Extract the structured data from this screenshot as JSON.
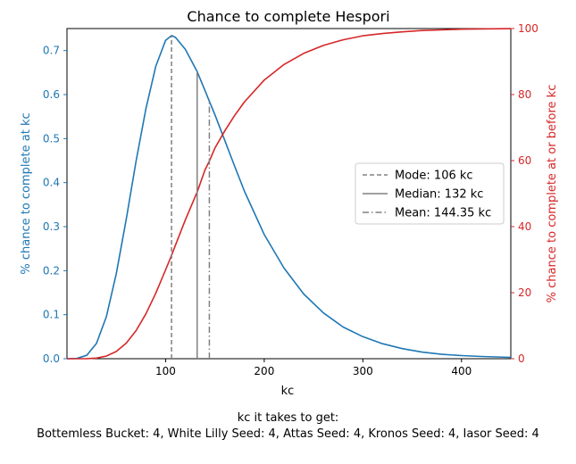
{
  "chart_data": {
    "type": "line",
    "title": "Chance to complete Hespori",
    "xlabel": "kc",
    "ylabel_left": "% chance to complete at kc",
    "ylabel_right": "% chance to complete at or before kc",
    "xlim": [
      0,
      450
    ],
    "ylim_left": [
      0,
      0.75
    ],
    "ylim_right": [
      0,
      100
    ],
    "x_ticks": [
      100,
      200,
      300,
      400
    ],
    "y_ticks_left": [
      0.0,
      0.1,
      0.2,
      0.3,
      0.4,
      0.5,
      0.6,
      0.7
    ],
    "y_ticks_right": [
      0,
      20,
      40,
      60,
      80,
      100
    ],
    "grid": false,
    "legend_position": "center-right",
    "colors": {
      "left_axis": "#1f77b4",
      "right_axis": "#d62728",
      "markers": "#808080"
    },
    "series": [
      {
        "axis": "left",
        "color": "#1f77b4",
        "x": [
          0,
          10,
          20,
          30,
          40,
          50,
          60,
          70,
          80,
          90,
          100,
          106,
          110,
          120,
          132,
          140,
          144,
          150,
          160,
          170,
          180,
          200,
          220,
          240,
          260,
          280,
          300,
          320,
          340,
          360,
          380,
          400,
          420,
          450
        ],
        "y": [
          0.0,
          0.0006,
          0.0077,
          0.035,
          0.096,
          0.193,
          0.316,
          0.448,
          0.568,
          0.664,
          0.723,
          0.734,
          0.73,
          0.703,
          0.652,
          0.609,
          0.587,
          0.554,
          0.496,
          0.437,
          0.38,
          0.282,
          0.206,
          0.147,
          0.104,
          0.072,
          0.05,
          0.034,
          0.023,
          0.015,
          0.01,
          0.007,
          0.005,
          0.003
        ]
      },
      {
        "axis": "right",
        "color": "#d62728",
        "x": [
          0,
          10,
          20,
          30,
          40,
          50,
          60,
          70,
          80,
          90,
          100,
          106,
          110,
          120,
          132,
          140,
          144,
          150,
          160,
          170,
          180,
          200,
          220,
          240,
          260,
          280,
          300,
          320,
          340,
          360,
          380,
          400,
          420,
          450
        ],
        "y": [
          0.0,
          0.0,
          0.02,
          0.18,
          0.8,
          2.2,
          4.7,
          8.5,
          13.6,
          19.8,
          26.9,
          31.3,
          34.4,
          42.0,
          50.5,
          57.2,
          59.6,
          63.8,
          69.0,
          73.7,
          77.8,
          84.4,
          89.1,
          92.5,
          94.9,
          96.6,
          97.8,
          98.5,
          99.0,
          99.4,
          99.6,
          99.8,
          99.9,
          99.96
        ]
      }
    ],
    "markers": [
      {
        "label": "Mode: 106 kc",
        "x": 106,
        "style": "dashed"
      },
      {
        "label": "Median: 132 kc",
        "x": 132,
        "style": "solid"
      },
      {
        "label": "Mean: 144.35 kc",
        "x": 144.35,
        "style": "dashdot"
      }
    ]
  },
  "caption": {
    "line1": "kc it takes to get:",
    "line2": "Bottemless Bucket: 4,  White Lilly Seed: 4,  Attas Seed: 4,  Kronos Seed: 4,  Iasor Seed: 4"
  }
}
